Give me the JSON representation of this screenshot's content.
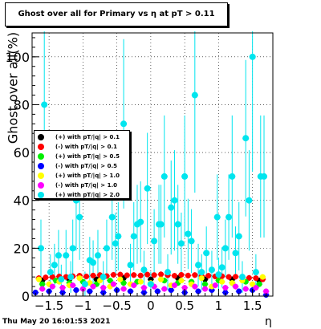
{
  "chart_data": {
    "type": "scatter",
    "title": "Ghost over all for Primary vs   η at pT > 0.11",
    "xlabel": "η",
    "ylabel": "Ghost over all(%)",
    "xlim": [
      -1.75,
      1.8
    ],
    "ylim": [
      0,
      110
    ],
    "xticks": [
      -1.5,
      -1,
      -0.5,
      0,
      0.5,
      1,
      1.5
    ],
    "xtick_labels": [
      "−1.5",
      "−1",
      "−0.5",
      "0",
      "0.5",
      "1",
      "1.5"
    ],
    "yticks": [
      0,
      20,
      40,
      60,
      80,
      100
    ],
    "ytick_labels": [
      "0",
      "20",
      "40",
      "60",
      "80",
      "100"
    ],
    "grid": true,
    "legend_position": "left-middle",
    "series": [
      {
        "name": "(+) with pT/|q| > 0.1",
        "color": "#000000",
        "x": [
          -1.6,
          -1.2,
          -0.8,
          -0.4,
          0.0,
          0.4,
          0.8,
          1.2,
          1.6
        ],
        "y": [
          6.5,
          7.0,
          7.0,
          7.5,
          7.0,
          7.5,
          7.0,
          7.0,
          6.5
        ]
      },
      {
        "name": "(-) with pT/|q| > 0.1",
        "color": "#ff0000",
        "x": [
          -1.65,
          -1.55,
          -1.45,
          -1.35,
          -1.25,
          -1.15,
          -1.05,
          -0.95,
          -0.85,
          -0.75,
          -0.65,
          -0.55,
          -0.45,
          -0.35,
          -0.25,
          -0.15,
          -0.05,
          0.05,
          0.15,
          0.25,
          0.35,
          0.45,
          0.55,
          0.65,
          0.75,
          0.85,
          0.95,
          1.05,
          1.15,
          1.25,
          1.35,
          1.45,
          1.55,
          1.65
        ],
        "y": [
          7.5,
          7.8,
          8.0,
          8.2,
          8.0,
          8.3,
          8.5,
          8.2,
          8.6,
          8.8,
          8.4,
          8.9,
          9.0,
          8.7,
          8.8,
          8.6,
          9.0,
          8.8,
          9.1,
          8.7,
          8.5,
          8.9,
          8.6,
          8.8,
          8.4,
          8.5,
          8.2,
          8.3,
          8.0,
          8.1,
          7.8,
          7.6,
          7.5,
          7.0
        ]
      },
      {
        "name": "(+) with pT/|q| > 0.5",
        "color": "#00ee00",
        "x": [
          -1.6,
          -1.4,
          -1.2,
          -1.0,
          -0.8,
          -0.6,
          -0.4,
          -0.2,
          0.0,
          0.2,
          0.4,
          0.6,
          0.8,
          1.0,
          1.2,
          1.4,
          1.6
        ],
        "y": [
          5.0,
          6.5,
          5.5,
          6.0,
          5.0,
          6.5,
          5.5,
          6.0,
          5.0,
          6.5,
          5.5,
          6.0,
          5.0,
          6.5,
          5.5,
          6.0,
          5.0
        ]
      },
      {
        "name": "(-) with pT/|q| > 0.5",
        "color": "#0000ff",
        "x": [
          -1.7,
          -1.5,
          -1.3,
          -1.1,
          -0.9,
          -0.7,
          -0.5,
          -0.3,
          -0.1,
          0.1,
          0.3,
          0.5,
          0.7,
          0.9,
          1.1,
          1.3,
          1.5,
          1.7
        ],
        "y": [
          1.5,
          2.0,
          1.5,
          2.5,
          2.0,
          1.5,
          2.5,
          2.0,
          1.5,
          2.0,
          2.5,
          1.5,
          2.0,
          2.5,
          1.5,
          2.0,
          2.5,
          0.5
        ]
      },
      {
        "name": "(+) with pT/|q| > 1.0",
        "color": "#ffff00",
        "x": [
          -1.65,
          -1.5,
          -1.35,
          -1.2,
          -1.05,
          -0.9,
          -0.75,
          -0.6,
          -0.45,
          -0.3,
          -0.15,
          0.0,
          0.15,
          0.3,
          0.45,
          0.6,
          0.75,
          0.9,
          1.05,
          1.2,
          1.35,
          1.5,
          1.65
        ],
        "y": [
          7.0,
          5.0,
          6.0,
          4.5,
          7.5,
          5.5,
          6.5,
          4.0,
          7.0,
          5.0,
          6.0,
          5.5,
          7.0,
          4.5,
          6.5,
          5.0,
          7.5,
          4.0,
          6.0,
          5.5,
          6.5,
          5.0,
          8.0
        ]
      },
      {
        "name": "(-) with pT/|q| > 1.0",
        "color": "#ff00ff",
        "x": [
          -1.6,
          -1.45,
          -1.3,
          -1.15,
          -1.0,
          -0.85,
          -0.7,
          -0.55,
          -0.4,
          -0.25,
          -0.1,
          0.05,
          0.2,
          0.35,
          0.5,
          0.65,
          0.8,
          0.95,
          1.1,
          1.25,
          1.4,
          1.55,
          1.7
        ],
        "y": [
          3.0,
          4.0,
          3.5,
          4.5,
          3.0,
          4.0,
          3.5,
          5.0,
          3.0,
          4.5,
          3.5,
          4.0,
          3.0,
          4.5,
          3.5,
          4.0,
          3.0,
          4.5,
          3.5,
          4.0,
          3.0,
          3.5,
          2.0
        ]
      },
      {
        "name": "(+) with pT/|q| > 2.0",
        "color": "#00e5ee",
        "x": [
          -1.62,
          -1.57,
          -1.48,
          -1.42,
          -1.36,
          -1.32,
          -1.25,
          -1.18,
          -1.15,
          -1.1,
          -1.05,
          -0.97,
          -0.9,
          -0.85,
          -0.78,
          -0.7,
          -0.65,
          -0.57,
          -0.52,
          -0.48,
          -0.4,
          -0.3,
          -0.25,
          -0.2,
          -0.15,
          -0.1,
          -0.05,
          0.0,
          0.05,
          0.12,
          0.15,
          0.2,
          0.25,
          0.3,
          0.35,
          0.4,
          0.45,
          0.5,
          0.55,
          0.6,
          0.65,
          0.7,
          0.75,
          0.82,
          0.9,
          0.98,
          1.0,
          1.05,
          1.1,
          1.15,
          1.2,
          1.25,
          1.3,
          1.35,
          1.4,
          1.45,
          1.5,
          1.55,
          1.62,
          1.67
        ],
        "y": [
          20,
          80,
          10,
          13,
          17,
          7,
          17,
          8,
          20,
          40,
          33,
          5,
          15,
          14,
          17,
          8,
          20,
          33,
          22,
          25,
          72,
          13,
          25,
          30,
          31,
          11,
          45,
          5,
          23,
          30,
          30,
          50,
          10,
          37,
          40,
          30,
          22,
          50,
          26,
          23,
          84,
          13,
          10,
          18,
          11,
          33,
          9,
          12,
          20,
          33,
          50,
          18,
          25,
          8,
          66,
          40,
          100,
          10,
          50,
          50
        ]
      }
    ]
  },
  "timestamp": "Thu May 20 16:01:53 2021"
}
